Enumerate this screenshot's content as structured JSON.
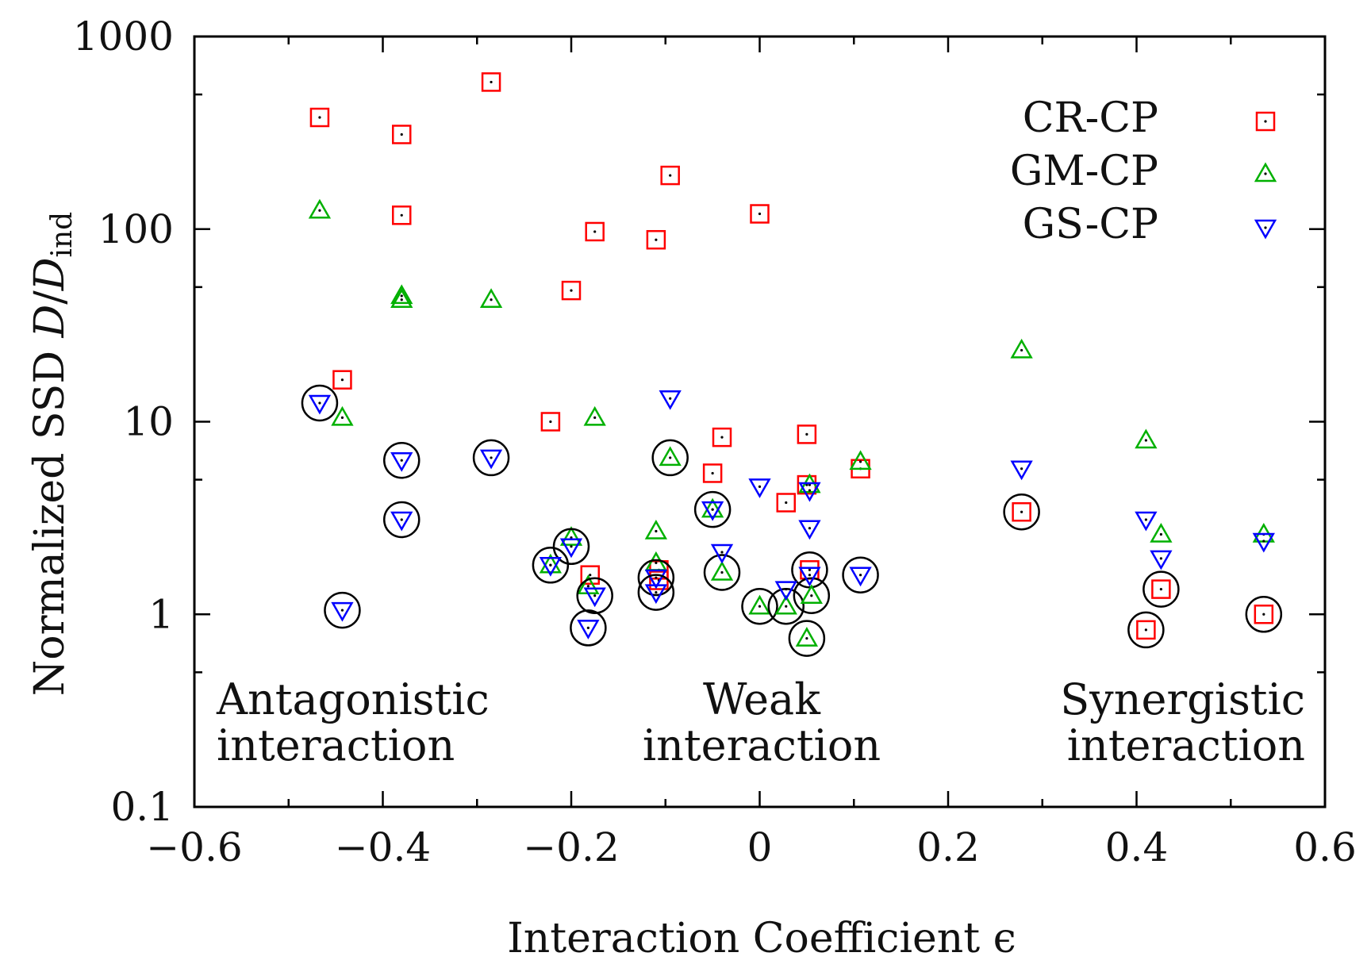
{
  "chart_data": {
    "type": "scatter",
    "xlabel": "Interaction Coefficient ϵ",
    "ylabel": {
      "prefix": "Normalized SSD ",
      "D": "D",
      "slash": "/",
      "Dind": "D",
      "sub": "ind"
    },
    "xlim": [
      -0.6,
      0.6
    ],
    "ylim": [
      0.1,
      1000
    ],
    "yscale": "log",
    "xticks": [
      -0.6,
      -0.4,
      -0.2,
      0,
      0.2,
      0.4,
      0.6
    ],
    "xtick_labels": [
      "−0.6",
      "−0.4",
      "−0.2",
      "0",
      "0.2",
      "0.4",
      "0.6"
    ],
    "yticks": [
      0.1,
      1,
      10,
      100,
      1000
    ],
    "ytick_labels": [
      "0.1",
      "1",
      "10",
      "100",
      "1000"
    ],
    "legend_position": "top-right",
    "regions": [
      {
        "line1": "Antagonistic",
        "line2": "interaction",
        "anchor": "left"
      },
      {
        "line1": "Weak",
        "line2": "interaction",
        "anchor": "center"
      },
      {
        "line1": "Synergistic",
        "line2": "interaction",
        "anchor": "right"
      }
    ],
    "series": [
      {
        "name": "CR-CP",
        "marker": "square",
        "color": "#ff0000",
        "points": [
          {
            "x": -0.467,
            "y": 380
          },
          {
            "x": -0.38,
            "y": 310
          },
          {
            "x": -0.285,
            "y": 580
          },
          {
            "x": -0.38,
            "y": 118
          },
          {
            "x": -0.095,
            "y": 190
          },
          {
            "x": 0.0,
            "y": 120
          },
          {
            "x": -0.175,
            "y": 97
          },
          {
            "x": -0.11,
            "y": 88
          },
          {
            "x": -0.2,
            "y": 48
          },
          {
            "x": -0.443,
            "y": 16.5
          },
          {
            "x": -0.222,
            "y": 10
          },
          {
            "x": -0.04,
            "y": 8.3
          },
          {
            "x": 0.05,
            "y": 8.6
          },
          {
            "x": -0.05,
            "y": 5.4
          },
          {
            "x": 0.107,
            "y": 5.7
          },
          {
            "x": 0.05,
            "y": 4.7
          },
          {
            "x": 0.028,
            "y": 3.8
          },
          {
            "x": 0.278,
            "y": 3.4,
            "circled": true
          },
          {
            "x": -0.18,
            "y": 1.6
          },
          {
            "x": -0.107,
            "y": 1.7
          },
          {
            "x": -0.107,
            "y": 1.5
          },
          {
            "x": 0.053,
            "y": 1.7,
            "circled": true
          },
          {
            "x": 0.426,
            "y": 1.35,
            "circled": true
          },
          {
            "x": 0.41,
            "y": 0.83,
            "circled": true
          },
          {
            "x": 0.535,
            "y": 1.0,
            "circled": true
          }
        ]
      },
      {
        "name": "GM-CP",
        "marker": "triangle-up",
        "color": "#00b000",
        "points": [
          {
            "x": -0.467,
            "y": 125
          },
          {
            "x": -0.38,
            "y": 45
          },
          {
            "x": -0.38,
            "y": 43
          },
          {
            "x": -0.285,
            "y": 43
          },
          {
            "x": 0.278,
            "y": 23.5
          },
          {
            "x": -0.443,
            "y": 10.5
          },
          {
            "x": -0.175,
            "y": 10.5
          },
          {
            "x": 0.41,
            "y": 8.0
          },
          {
            "x": -0.095,
            "y": 6.5,
            "circled": true
          },
          {
            "x": 0.107,
            "y": 6.2
          },
          {
            "x": 0.053,
            "y": 4.7
          },
          {
            "x": -0.05,
            "y": 3.5
          },
          {
            "x": -0.11,
            "y": 2.7
          },
          {
            "x": -0.2,
            "y": 2.5
          },
          {
            "x": 0.426,
            "y": 2.6
          },
          {
            "x": 0.535,
            "y": 2.6
          },
          {
            "x": -0.222,
            "y": 1.8
          },
          {
            "x": -0.11,
            "y": 1.85
          },
          {
            "x": -0.04,
            "y": 1.65,
            "circled": true
          },
          {
            "x": -0.182,
            "y": 1.4
          },
          {
            "x": 0.0,
            "y": 1.1,
            "circled": true
          },
          {
            "x": 0.028,
            "y": 1.1,
            "circled": true
          },
          {
            "x": 0.055,
            "y": 1.25,
            "circled": true
          },
          {
            "x": 0.05,
            "y": 0.75,
            "circled": true
          }
        ]
      },
      {
        "name": "GS-CP",
        "marker": "triangle-down",
        "color": "#0000ff",
        "points": [
          {
            "x": -0.095,
            "y": 13.2
          },
          {
            "x": -0.467,
            "y": 12.5,
            "circled": true
          },
          {
            "x": -0.38,
            "y": 6.3,
            "circled": true
          },
          {
            "x": -0.285,
            "y": 6.5,
            "circled": true
          },
          {
            "x": 0.278,
            "y": 5.7
          },
          {
            "x": 0.0,
            "y": 4.6
          },
          {
            "x": 0.053,
            "y": 4.4
          },
          {
            "x": -0.05,
            "y": 3.5,
            "circled": true
          },
          {
            "x": -0.38,
            "y": 3.1,
            "circled": true
          },
          {
            "x": 0.41,
            "y": 3.1
          },
          {
            "x": 0.053,
            "y": 2.8
          },
          {
            "x": 0.535,
            "y": 2.4
          },
          {
            "x": -0.2,
            "y": 2.25,
            "circled": true
          },
          {
            "x": -0.04,
            "y": 2.1
          },
          {
            "x": 0.426,
            "y": 1.95
          },
          {
            "x": -0.222,
            "y": 1.8,
            "circled": true
          },
          {
            "x": 0.107,
            "y": 1.6,
            "circled": true
          },
          {
            "x": 0.053,
            "y": 1.6
          },
          {
            "x": -0.11,
            "y": 1.55,
            "circled": true
          },
          {
            "x": -0.11,
            "y": 1.3,
            "circled": true
          },
          {
            "x": 0.028,
            "y": 1.35
          },
          {
            "x": -0.175,
            "y": 1.25,
            "circled": true
          },
          {
            "x": -0.443,
            "y": 1.05,
            "circled": true
          },
          {
            "x": -0.182,
            "y": 0.85,
            "circled": true
          }
        ]
      }
    ]
  }
}
